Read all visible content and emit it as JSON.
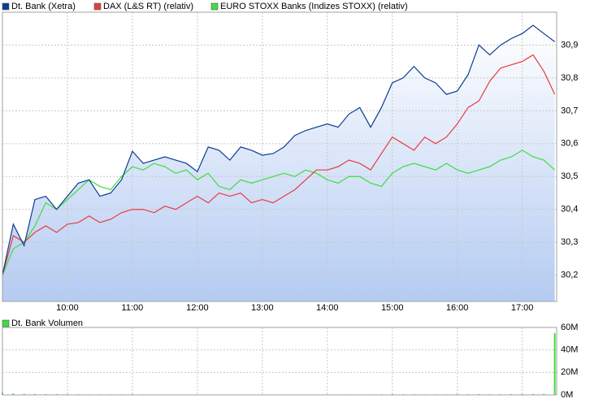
{
  "chart_data": [
    {
      "type": "line",
      "x": [
        9,
        9.167,
        9.333,
        9.5,
        9.667,
        9.833,
        10,
        10.167,
        10.333,
        10.5,
        10.667,
        10.833,
        11,
        11.167,
        11.333,
        11.5,
        11.667,
        11.833,
        12,
        12.167,
        12.333,
        12.5,
        12.667,
        12.833,
        13,
        13.167,
        13.333,
        13.5,
        13.667,
        13.833,
        14,
        14.167,
        14.333,
        14.5,
        14.667,
        14.833,
        15,
        15.167,
        15.333,
        15.5,
        15.667,
        15.833,
        16,
        16.167,
        16.333,
        16.5,
        16.667,
        16.833,
        17,
        17.167,
        17.333,
        17.5
      ],
      "xlim": [
        9,
        17.53
      ],
      "xticks": [
        {
          "value": 10,
          "label": "10:00"
        },
        {
          "value": 11,
          "label": "11:00"
        },
        {
          "value": 12,
          "label": "12:00"
        },
        {
          "value": 13,
          "label": "13:00"
        },
        {
          "value": 14,
          "label": "14:00"
        },
        {
          "value": 15,
          "label": "15:00"
        },
        {
          "value": 16,
          "label": "16:00"
        },
        {
          "value": 17,
          "label": "17:00"
        }
      ],
      "ylim": [
        30.12,
        31.0
      ],
      "yticks": [
        {
          "value": 30.2,
          "label": "30,2"
        },
        {
          "value": 30.3,
          "label": "30,3"
        },
        {
          "value": 30.4,
          "label": "30,4"
        },
        {
          "value": 30.5,
          "label": "30,5"
        },
        {
          "value": 30.6,
          "label": "30,6"
        },
        {
          "value": 30.7,
          "label": "30,7"
        },
        {
          "value": 30.8,
          "label": "30,8"
        },
        {
          "value": 30.9,
          "label": "30,9"
        }
      ],
      "grid": true,
      "series": [
        {
          "name": "Dt. Bank (Xetra)",
          "color": "#0b3d91",
          "fill": true,
          "values": [
            30.2,
            30.355,
            30.29,
            30.43,
            30.44,
            30.4,
            30.44,
            30.48,
            30.49,
            30.44,
            30.45,
            30.49,
            30.577,
            30.54,
            30.55,
            30.56,
            30.55,
            30.54,
            30.515,
            30.59,
            30.58,
            30.55,
            30.59,
            30.58,
            30.565,
            30.57,
            30.59,
            30.625,
            30.64,
            30.65,
            30.66,
            30.65,
            30.69,
            30.71,
            30.65,
            30.71,
            30.785,
            30.8,
            30.835,
            30.8,
            30.785,
            30.75,
            30.76,
            30.81,
            30.9,
            30.87,
            30.9,
            30.92,
            30.935,
            30.96,
            30.935,
            30.91
          ]
        },
        {
          "name": "DAX (L&S RT) (relativ)",
          "color": "#e83c3c",
          "values": [
            30.2,
            30.32,
            30.3,
            30.33,
            30.35,
            30.33,
            30.355,
            30.36,
            30.38,
            30.36,
            30.37,
            30.39,
            30.4,
            30.4,
            30.39,
            30.41,
            30.4,
            30.42,
            30.44,
            30.42,
            30.45,
            30.44,
            30.45,
            30.42,
            30.43,
            30.42,
            30.44,
            30.46,
            30.49,
            30.52,
            30.52,
            30.53,
            30.55,
            30.54,
            30.52,
            30.57,
            30.62,
            30.6,
            30.58,
            30.62,
            30.6,
            30.62,
            30.66,
            30.71,
            30.73,
            30.79,
            30.83,
            30.84,
            30.85,
            30.87,
            30.82,
            30.75
          ]
        },
        {
          "name": "EURO STOXX Banks (Indizes STOXX) (relativ)",
          "color": "#3fdc3f",
          "values": [
            30.2,
            30.28,
            30.3,
            30.35,
            30.42,
            30.4,
            30.43,
            30.46,
            30.49,
            30.47,
            30.46,
            30.5,
            30.53,
            30.52,
            30.54,
            30.53,
            30.51,
            30.52,
            30.49,
            30.51,
            30.47,
            30.46,
            30.49,
            30.48,
            30.49,
            30.5,
            30.51,
            30.5,
            30.52,
            30.51,
            30.49,
            30.48,
            30.5,
            30.5,
            30.48,
            30.47,
            30.51,
            30.53,
            30.54,
            30.53,
            30.52,
            30.54,
            30.52,
            30.51,
            30.52,
            30.53,
            30.55,
            30.56,
            30.58,
            30.56,
            30.55,
            30.52
          ]
        }
      ]
    },
    {
      "type": "bar",
      "x": [
        9,
        9.167,
        9.333,
        9.5,
        9.667,
        9.833,
        10,
        10.167,
        10.333,
        10.5,
        10.667,
        10.833,
        11,
        11.167,
        11.333,
        11.5,
        11.667,
        11.833,
        12,
        12.167,
        12.333,
        12.5,
        12.667,
        12.833,
        13,
        13.167,
        13.333,
        13.5,
        13.667,
        13.833,
        14,
        14.167,
        14.333,
        14.5,
        14.667,
        14.833,
        15,
        15.167,
        15.333,
        15.5,
        15.667,
        15.833,
        16,
        16.167,
        16.333,
        16.5,
        16.667,
        16.833,
        17,
        17.167,
        17.333,
        17.5
      ],
      "xlim": [
        9,
        17.53
      ],
      "xticks": [
        10,
        11,
        12,
        13,
        14,
        15,
        16,
        17
      ],
      "ylim": [
        0,
        60000000
      ],
      "yticks": [
        {
          "value": 0,
          "label": "0M"
        },
        {
          "value": 20000000,
          "label": "20M"
        },
        {
          "value": 40000000,
          "label": "40M"
        },
        {
          "value": 60000000,
          "label": "60M"
        }
      ],
      "grid": true,
      "series": [
        {
          "name": "Dt. Bank Volumen",
          "color": "#3fdc3f",
          "values": [
            2000000,
            1200000,
            900000,
            800000,
            700000,
            700000,
            600000,
            600000,
            500000,
            500000,
            500000,
            500000,
            600000,
            500000,
            400000,
            400000,
            400000,
            400000,
            400000,
            400000,
            300000,
            300000,
            300000,
            300000,
            300000,
            300000,
            400000,
            400000,
            400000,
            400000,
            500000,
            400000,
            500000,
            500000,
            500000,
            600000,
            700000,
            600000,
            600000,
            500000,
            500000,
            500000,
            600000,
            600000,
            700000,
            600000,
            600000,
            700000,
            700000,
            800000,
            900000,
            55000000
          ]
        }
      ]
    }
  ]
}
